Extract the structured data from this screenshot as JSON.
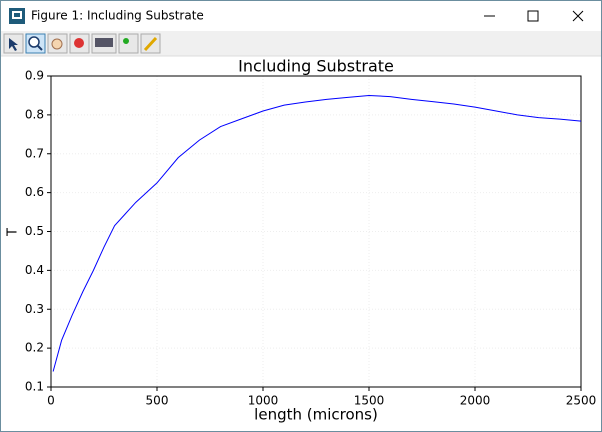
{
  "window": {
    "title": "Figure 1: Including Substrate"
  },
  "chart_data": {
    "type": "line",
    "title": "Including Substrate",
    "x_label": "length (microns)",
    "y_label": "T",
    "x": [
      10,
      50,
      100,
      150,
      200,
      250,
      300,
      350,
      400,
      450,
      500,
      600,
      700,
      800,
      900,
      1000,
      1100,
      1200,
      1300,
      1400,
      1500,
      1600,
      1700,
      1800,
      1900,
      2000,
      2100,
      2200,
      2300,
      2400,
      2500
    ],
    "values": [
      0.14,
      0.22,
      0.285,
      0.345,
      0.4,
      0.46,
      0.515,
      0.545,
      0.575,
      0.6,
      0.625,
      0.69,
      0.735,
      0.77,
      0.79,
      0.81,
      0.825,
      0.833,
      0.84,
      0.845,
      0.85,
      0.847,
      0.84,
      0.834,
      0.828,
      0.82,
      0.81,
      0.8,
      0.793,
      0.789,
      0.784
    ],
    "color": "#0000ff",
    "xlim": [
      0,
      2500
    ],
    "xticks": [
      0,
      500,
      1000,
      1500,
      2000,
      2500
    ],
    "ylim": [
      0.1,
      0.9
    ],
    "yticks": [
      0.1,
      0.2,
      0.3,
      0.4,
      0.5,
      0.6,
      0.7,
      0.8,
      0.9
    ],
    "grid": true
  }
}
